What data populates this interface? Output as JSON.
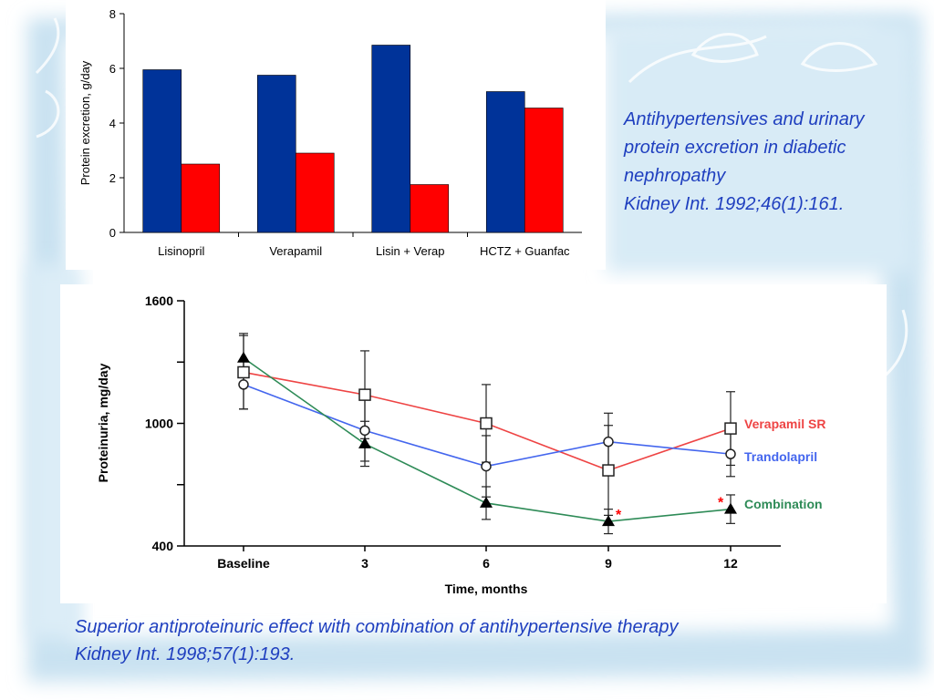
{
  "caption_top": {
    "lines": [
      "Antihypertensives and urinary",
      "protein excretion in diabetic",
      "nephropathy",
      "Kidney Int. 1992;46(1):161."
    ]
  },
  "caption_bottom": {
    "lines": [
      "Superior antiproteinuric effect with combination of antihypertensive therapy",
      "Kidney Int. 1998;57(1):193."
    ]
  },
  "colors": {
    "caption": "#1f3fbf",
    "bar_blue": "#003399",
    "bar_red": "#ff0000",
    "verapamil": "#ee4444",
    "trandolapril": "#4466ee",
    "combination": "#2e8b57",
    "asterisk": "#ff0000",
    "background_tint": "#c9e2f1"
  },
  "chart_data": [
    {
      "type": "bar",
      "categories": [
        "Lisinopril",
        "Verapamil",
        "Lisin + Verap",
        "HCTZ + Guanfac"
      ],
      "series": [
        {
          "color": "#003399",
          "values": [
            5.95,
            5.75,
            6.85,
            5.15
          ]
        },
        {
          "color": "#ff0000",
          "values": [
            2.5,
            2.9,
            1.75,
            4.55
          ]
        }
      ],
      "ylabel": "Protein excretion, g/day",
      "ylim": [
        0,
        8
      ],
      "yticks": [
        "0",
        "2",
        "4",
        "6",
        "8"
      ],
      "grid": false,
      "legend": "none"
    },
    {
      "type": "line",
      "x": [
        "Baseline",
        "3",
        "6",
        "9",
        "12"
      ],
      "xlabel": "Time, months",
      "ylabel": "Proteinuria, mg/day",
      "ylim": [
        400,
        1600
      ],
      "yticks": [
        "400",
        "1000",
        "1600"
      ],
      "grid": false,
      "legend": "right",
      "series": [
        {
          "name": "Verapamil SR",
          "color": "#ee4444",
          "marker": "square",
          "values": [
            1250,
            1140,
            1000,
            770,
            975
          ],
          "err": [
            180,
            215,
            190,
            220,
            180
          ]
        },
        {
          "name": "Trandolapril",
          "color": "#4466ee",
          "marker": "circle",
          "values": [
            1190,
            965,
            790,
            910,
            850
          ],
          "err": [
            120,
            150,
            150,
            140,
            110
          ]
        },
        {
          "name": "Combination",
          "color": "#2e8b57",
          "marker": "triangle",
          "values": [
            1320,
            900,
            610,
            520,
            580
          ],
          "err": [
            120,
            110,
            80,
            60,
            70
          ]
        }
      ],
      "annotations": [
        {
          "text": "*",
          "x": "9",
          "series": "Combination"
        },
        {
          "text": "*",
          "x": "12",
          "series": "Combination"
        }
      ]
    }
  ]
}
